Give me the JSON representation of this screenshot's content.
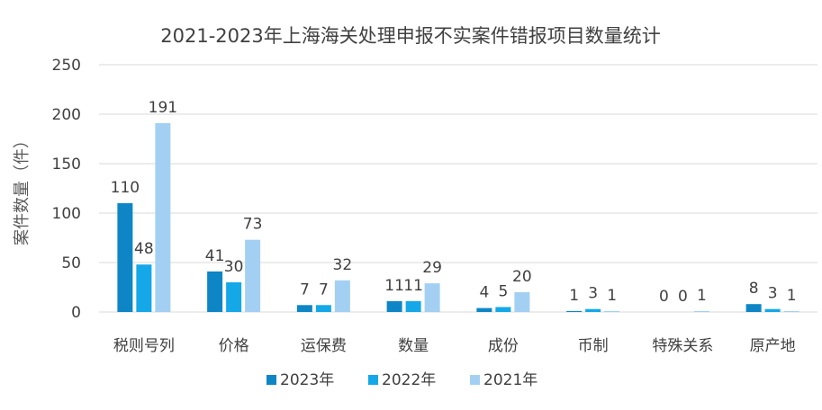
{
  "chart_data": {
    "type": "bar",
    "title": "2021-2023年上海海关处理申报不实案件错报项目数量统计",
    "xlabel": "",
    "ylabel": "案件数量（件）",
    "ylim": [
      0,
      250
    ],
    "yticks": [
      0,
      50,
      100,
      150,
      200,
      250
    ],
    "grid": true,
    "legend_position": "bottom",
    "categories": [
      "税则号列",
      "价格",
      "运保费",
      "数量",
      "成份",
      "币制",
      "特殊关系",
      "原产地"
    ],
    "series": [
      {
        "name": "2023年",
        "color": "#0e86c6",
        "values": [
          110,
          41,
          7,
          11,
          4,
          1,
          0,
          8
        ]
      },
      {
        "name": "2022年",
        "color": "#14a8e8",
        "values": [
          48,
          30,
          7,
          11,
          5,
          3,
          0,
          3
        ]
      },
      {
        "name": "2021年",
        "color": "#a3d0f2",
        "values": [
          191,
          73,
          32,
          29,
          20,
          1,
          1,
          1
        ]
      }
    ]
  }
}
